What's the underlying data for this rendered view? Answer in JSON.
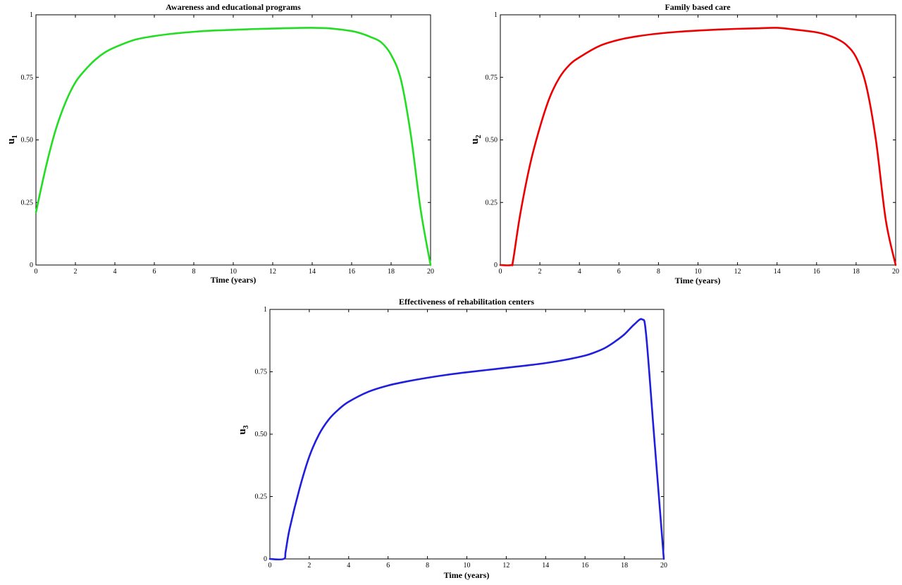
{
  "chart_data": [
    {
      "type": "line",
      "title": "Awareness and educational programs",
      "xlabel": "Time (years)",
      "ylabel": "u",
      "ylabel_sub": "1",
      "xlim": [
        0,
        20
      ],
      "ylim": [
        0,
        1
      ],
      "xticks": [
        "0",
        "2",
        "4",
        "6",
        "8",
        "10",
        "12",
        "14",
        "16",
        "18",
        "20"
      ],
      "yticks": [
        "0",
        "0.25",
        "0.50",
        "0.75",
        "1"
      ],
      "grid": false,
      "color": "#22dd22",
      "series": [
        {
          "x": [
            0,
            0.5,
            1,
            1.5,
            2,
            2.5,
            3,
            3.5,
            4,
            5,
            6,
            7,
            8,
            9,
            10,
            11,
            12,
            13,
            14,
            15,
            16,
            16.5,
            17,
            17.5,
            18,
            18.5,
            19,
            19.5,
            20
          ],
          "y": [
            0.21,
            0.39,
            0.54,
            0.65,
            0.73,
            0.78,
            0.82,
            0.85,
            0.87,
            0.9,
            0.915,
            0.925,
            0.932,
            0.937,
            0.94,
            0.943,
            0.945,
            0.947,
            0.948,
            0.945,
            0.935,
            0.925,
            0.91,
            0.89,
            0.84,
            0.74,
            0.52,
            0.22,
            0.0
          ]
        }
      ]
    },
    {
      "type": "line",
      "title": "Family based care",
      "xlabel": "Time (years)",
      "ylabel": "u",
      "ylabel_sub": "2",
      "xlim": [
        0,
        20
      ],
      "ylim": [
        0,
        1
      ],
      "xticks": [
        "0",
        "2",
        "4",
        "6",
        "8",
        "10",
        "12",
        "14",
        "16",
        "18",
        "20"
      ],
      "yticks": [
        "0",
        "0.25",
        "0.50",
        "0.75",
        "1"
      ],
      "grid": false,
      "color": "#ee0000",
      "series": [
        {
          "x": [
            0,
            0.55,
            0.65,
            1,
            1.5,
            2,
            2.5,
            3,
            3.5,
            4,
            5,
            6,
            7,
            8,
            9,
            10,
            11,
            12,
            13,
            14,
            15,
            16,
            16.5,
            17,
            17.5,
            18,
            18.5,
            19,
            19.5,
            20
          ],
          "y": [
            0.0,
            0.0,
            0.02,
            0.2,
            0.4,
            0.55,
            0.67,
            0.75,
            0.8,
            0.83,
            0.875,
            0.9,
            0.915,
            0.925,
            0.932,
            0.937,
            0.941,
            0.944,
            0.946,
            0.948,
            0.94,
            0.93,
            0.92,
            0.905,
            0.88,
            0.83,
            0.72,
            0.5,
            0.18,
            0.0
          ]
        }
      ]
    },
    {
      "type": "line",
      "title": "Effectiveness of rehabilitation centers",
      "xlabel": "Time (years)",
      "ylabel": "u",
      "ylabel_sub": "3",
      "xlim": [
        0,
        20
      ],
      "ylim": [
        0,
        1
      ],
      "xticks": [
        "0",
        "2",
        "4",
        "6",
        "8",
        "10",
        "12",
        "14",
        "16",
        "18",
        "20"
      ],
      "yticks": [
        "0",
        "0.25",
        "0.50",
        "0.75",
        "1"
      ],
      "grid": false,
      "color": "#1f1fdd",
      "series": [
        {
          "x": [
            0,
            0.7,
            0.8,
            1,
            1.5,
            2,
            2.5,
            3,
            3.5,
            4,
            5,
            6,
            7,
            8,
            9,
            10,
            11,
            12,
            13,
            14,
            15,
            16,
            16.5,
            17,
            17.5,
            18,
            18.5,
            18.9,
            19.1,
            19.5,
            20
          ],
          "y": [
            0.0,
            0.0,
            0.03,
            0.12,
            0.28,
            0.41,
            0.5,
            0.56,
            0.6,
            0.63,
            0.67,
            0.695,
            0.712,
            0.726,
            0.738,
            0.748,
            0.757,
            0.766,
            0.775,
            0.785,
            0.798,
            0.815,
            0.828,
            0.845,
            0.87,
            0.9,
            0.94,
            0.96,
            0.9,
            0.5,
            0.0
          ]
        }
      ]
    }
  ]
}
